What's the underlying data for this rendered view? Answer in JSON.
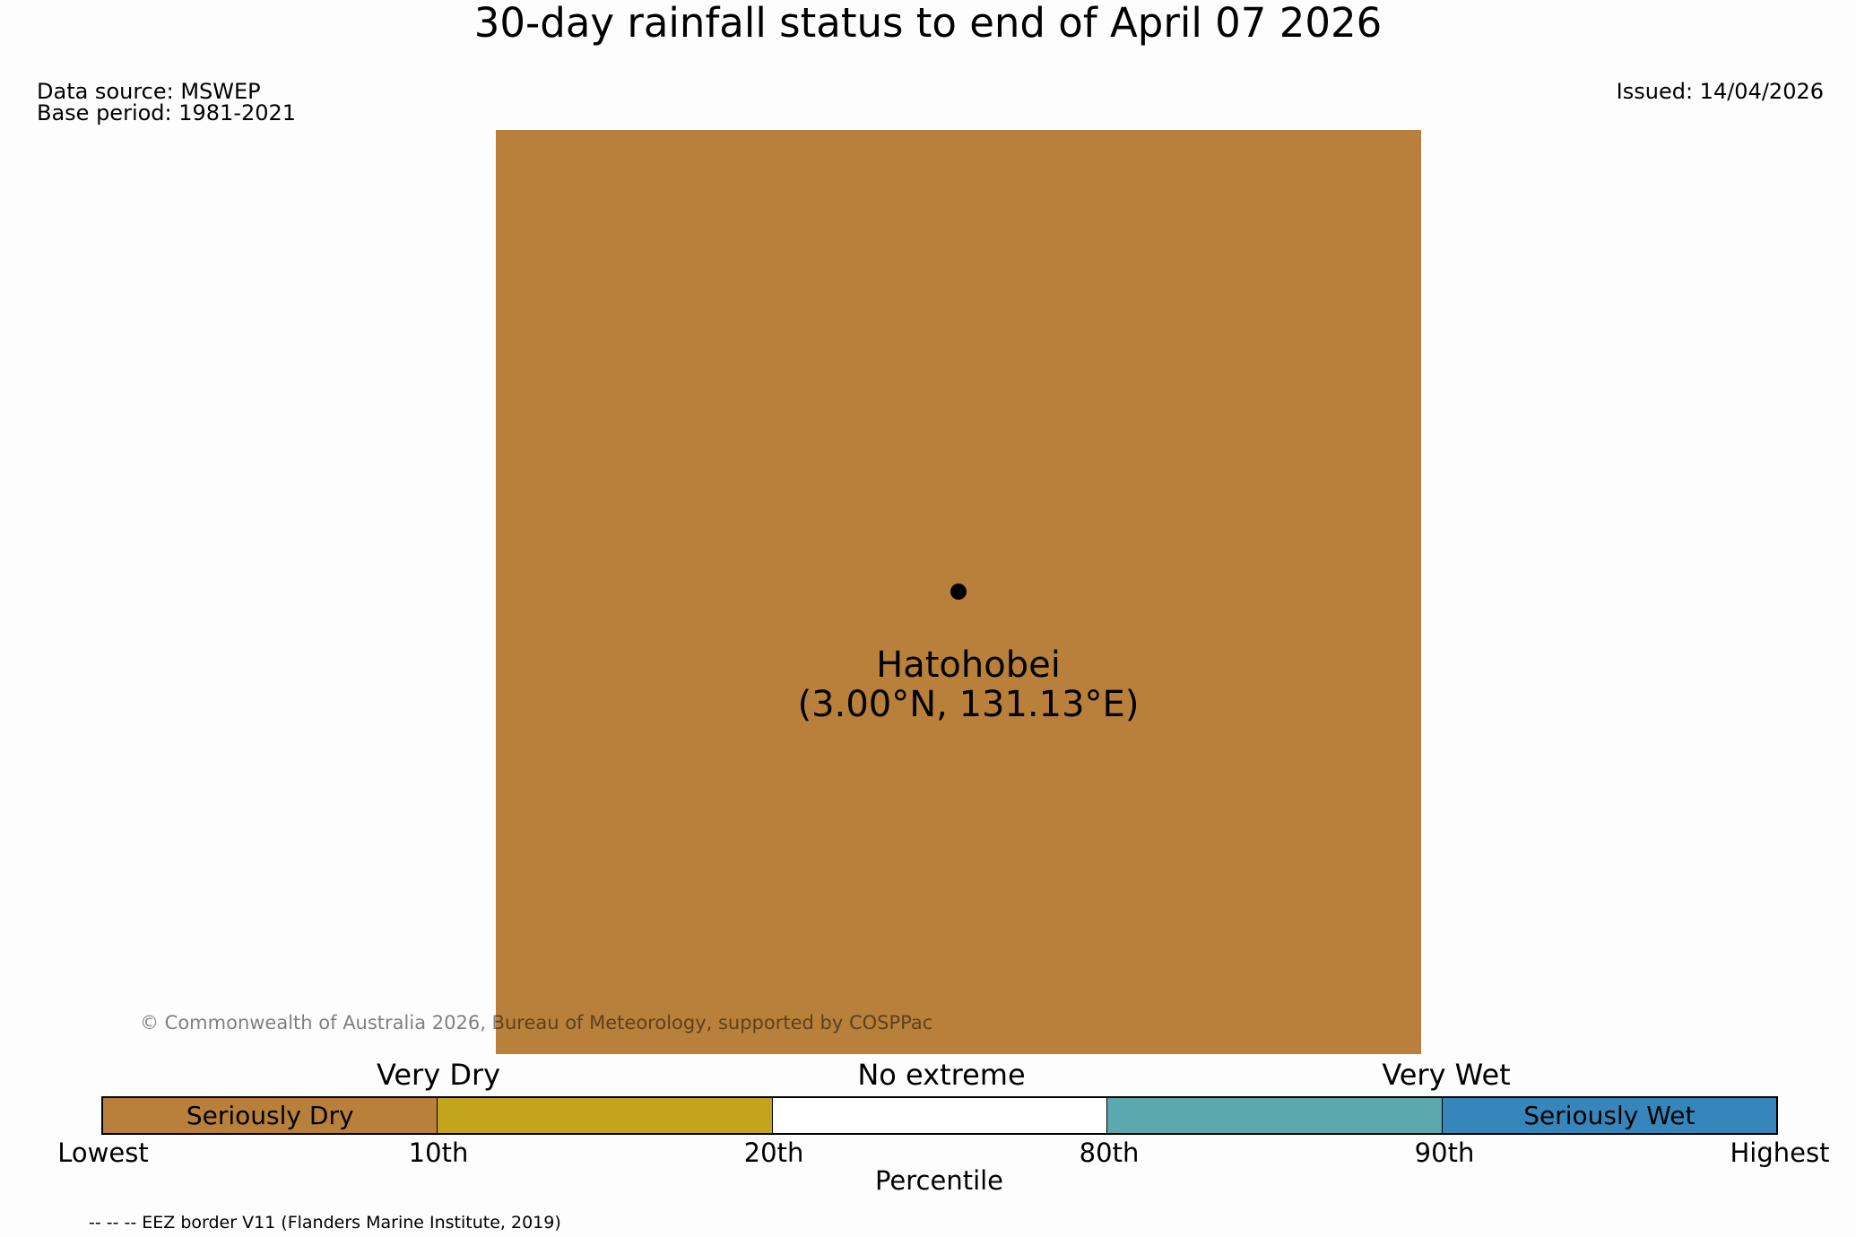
{
  "title": "30-day rainfall status to end of April 07 2026",
  "data_source": "Data source: MSWEP",
  "base_period": "Base period: 1981-2021",
  "issued": "Issued: 14/04/2026",
  "map": {
    "fill_color": "#b8803b",
    "location_name": "Hatohobei",
    "location_coords": "(3.00°N, 131.13°E)"
  },
  "copyright": "© Commonwealth of Australia 2026, Bureau of Meteorology, supported by COSPPac",
  "legend": {
    "groups": [
      "Very Dry",
      "No extreme",
      "Very Wet"
    ],
    "segments": [
      {
        "label": "Seriously Dry",
        "color": "#b8803b"
      },
      {
        "label": "",
        "color": "#c4a31d"
      },
      {
        "label": "",
        "color": "#ffffff"
      },
      {
        "label": "",
        "color": "#5ba8ae"
      },
      {
        "label": "Seriously Wet",
        "color": "#3686bb"
      }
    ],
    "ticks": [
      "Lowest",
      "10th",
      "20th",
      "80th",
      "90th",
      "Highest"
    ],
    "axis_label": "Percentile"
  },
  "eez_note": "-- -- -- EEZ border V11 (Flanders Marine Institute, 2019)"
}
